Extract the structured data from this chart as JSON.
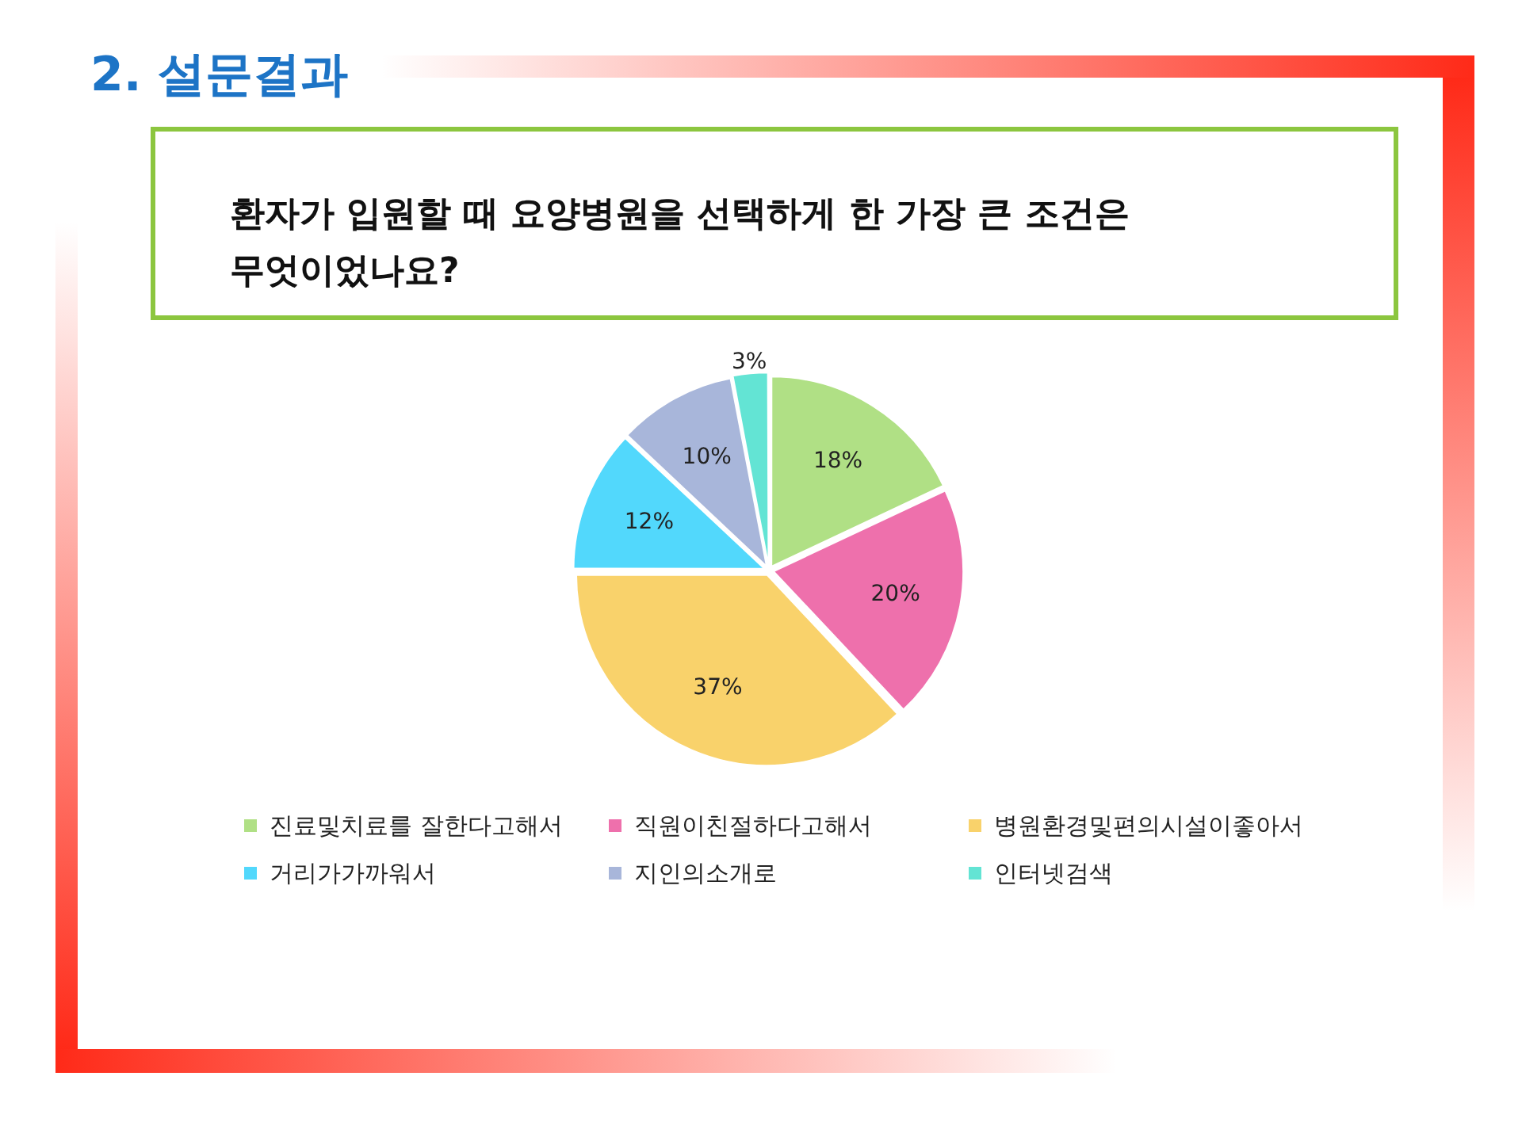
{
  "chart_data": {
    "type": "pie",
    "title": "2. 설문결과",
    "subtitle": "환자가 입원할 때 요양병원을 선택하게 한 가장 큰 조건은 무엇이었나요?",
    "categories": [
      "진료및치료를 잘한다고해서",
      "직원이친절하다고해서",
      "병원환경및편의시설이좋아서",
      "거리가가까워서",
      "지인의소개로",
      "인터넷검색"
    ],
    "values": [
      18,
      20,
      37,
      12,
      10,
      3
    ],
    "colors": [
      "#b0e085",
      "#ee70ac",
      "#f9d26b",
      "#52d8fc",
      "#a8b6da",
      "#63e4d4"
    ],
    "value_labels": [
      "18%",
      "20%",
      "37%",
      "12%",
      "10%",
      "3%"
    ],
    "legend": "bottom"
  }
}
